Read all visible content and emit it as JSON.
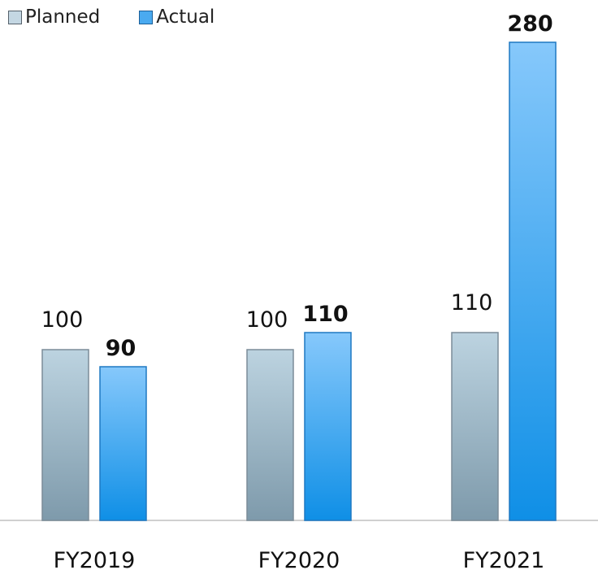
{
  "chart_data": {
    "type": "bar",
    "categories": [
      "FY2019",
      "FY2020",
      "FY2021"
    ],
    "series": [
      {
        "name": "Planned",
        "values": [
          100,
          100,
          110
        ],
        "color_top": "#bcd3e0",
        "color_bottom": "#7e9aab",
        "border": "#7b8c98",
        "label_bold": false
      },
      {
        "name": "Actual",
        "values": [
          90,
          110,
          280
        ],
        "color_top": "#86c8fb",
        "color_bottom": "#0f8fe6",
        "border": "#1e78c2",
        "label_bold": true
      }
    ],
    "title": "",
    "xlabel": "",
    "ylabel": "",
    "ylim": [
      0,
      280
    ],
    "grid": false,
    "legend_position": "top-left"
  }
}
